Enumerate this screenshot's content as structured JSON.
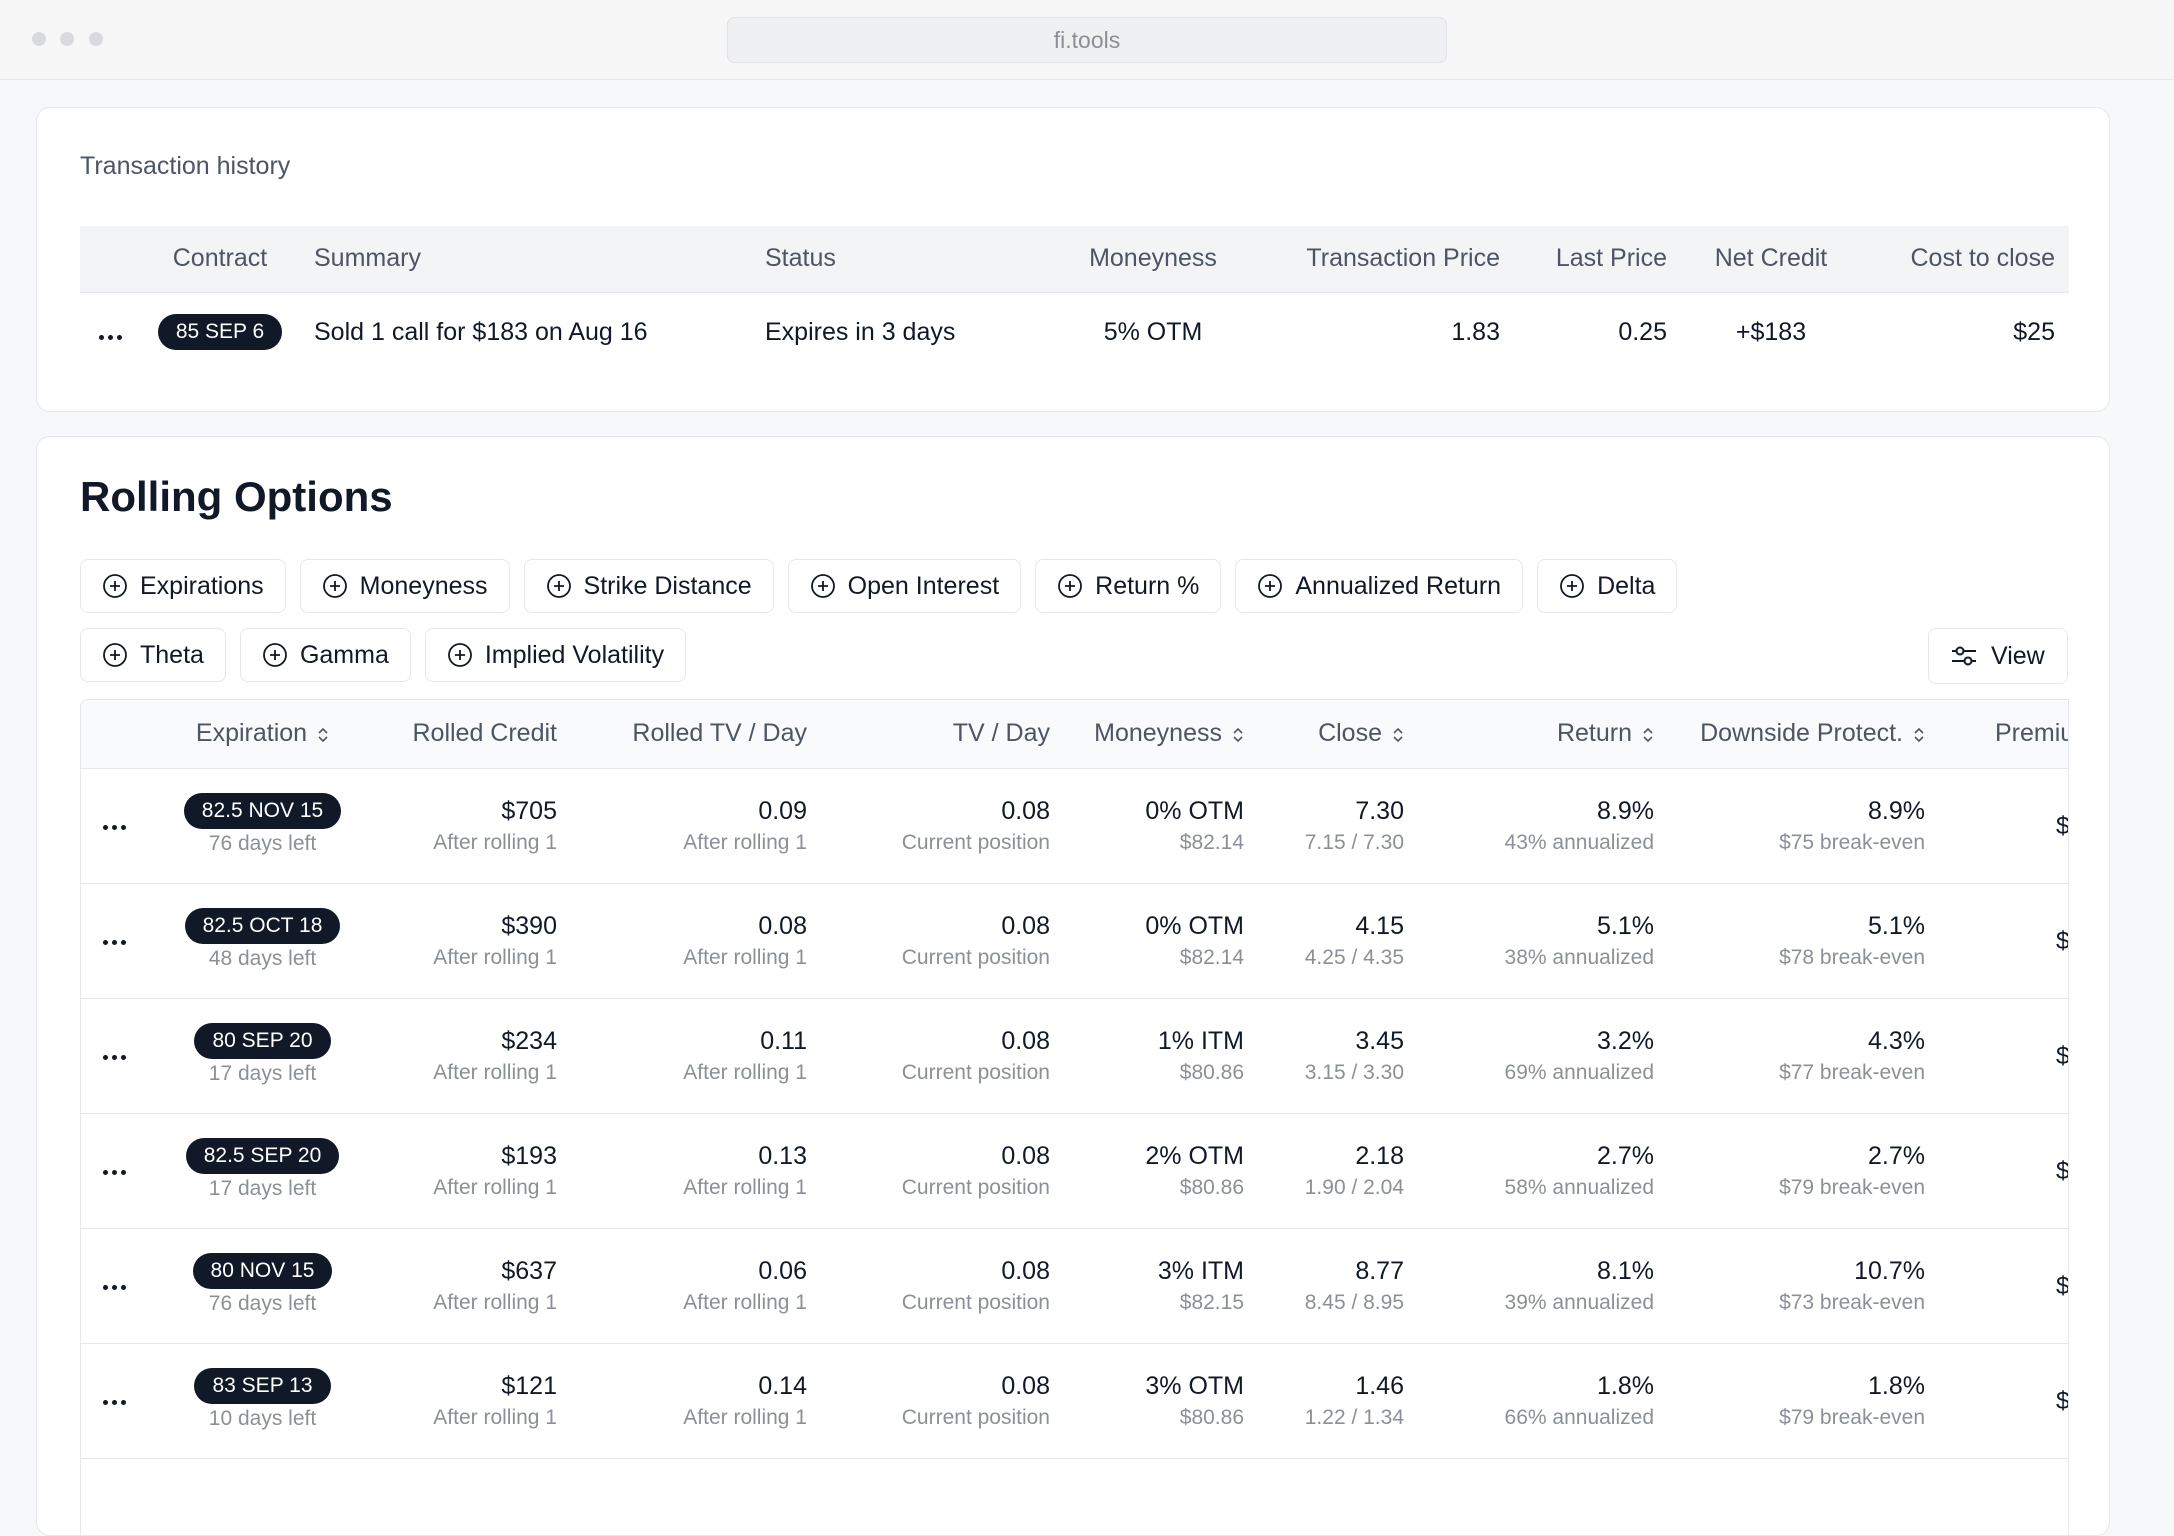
{
  "browser": {
    "url": "fi.tools"
  },
  "transaction_history": {
    "title": "Transaction history",
    "columns": [
      "Contract",
      "Summary",
      "Status",
      "Moneyness",
      "Transaction Price",
      "Last Price",
      "Net Credit",
      "Cost to close"
    ],
    "rows": [
      [
        "85 SEP 6",
        "Sold 1 call for $183 on Aug 16",
        "Expires in 3 days",
        "5% OTM",
        "1.83",
        "0.25",
        "+$183",
        "$25"
      ]
    ]
  },
  "rolling_options": {
    "title": "Rolling Options",
    "filters": [
      [
        "Expirations",
        "Moneyness",
        "Strike Distance",
        "Open Interest",
        "Return %",
        "Annualized Return",
        "Delta"
      ],
      [
        "Theta",
        "Gamma",
        "Implied Volatility"
      ]
    ],
    "view_button": "View",
    "columns": [
      {
        "label": "Expiration",
        "sortable": true
      },
      {
        "label": "Rolled Credit",
        "sortable": false
      },
      {
        "label": "Rolled TV / Day",
        "sortable": false
      },
      {
        "label": "TV / Day",
        "sortable": false
      },
      {
        "label": "Moneyness",
        "sortable": true
      },
      {
        "label": "Close",
        "sortable": true
      },
      {
        "label": "Return",
        "sortable": true
      },
      {
        "label": "Downside Protect.",
        "sortable": true
      },
      {
        "label": "Premiu",
        "sortable": false
      }
    ],
    "rows": [
      [
        {
          "value": "82.5 NOV 15",
          "sub": "76 days left"
        },
        {
          "value": "$705",
          "sub": "After rolling 1"
        },
        {
          "value": "0.09",
          "sub": "After rolling 1"
        },
        {
          "value": "0.08",
          "sub": "Current position"
        },
        {
          "value": "0% OTM",
          "sub": "$82.14"
        },
        {
          "value": "7.30",
          "sub": "7.15 / 7.30"
        },
        {
          "value": "8.9%",
          "sub": "43% annualized"
        },
        {
          "value": "8.9%",
          "sub": "$75 break-even"
        },
        {
          "value": "$"
        }
      ],
      [
        {
          "value": "82.5 OCT 18",
          "sub": "48 days left"
        },
        {
          "value": "$390",
          "sub": "After rolling 1"
        },
        {
          "value": "0.08",
          "sub": "After rolling 1"
        },
        {
          "value": "0.08",
          "sub": "Current position"
        },
        {
          "value": "0% OTM",
          "sub": "$82.14"
        },
        {
          "value": "4.15",
          "sub": "4.25 / 4.35"
        },
        {
          "value": "5.1%",
          "sub": "38% annualized"
        },
        {
          "value": "5.1%",
          "sub": "$78 break-even"
        },
        {
          "value": "$"
        }
      ],
      [
        {
          "value": "80 SEP 20",
          "sub": "17 days left"
        },
        {
          "value": "$234",
          "sub": "After rolling 1"
        },
        {
          "value": "0.11",
          "sub": "After rolling 1"
        },
        {
          "value": "0.08",
          "sub": "Current position"
        },
        {
          "value": "1% ITM",
          "sub": "$80.86"
        },
        {
          "value": "3.45",
          "sub": "3.15 / 3.30"
        },
        {
          "value": "3.2%",
          "sub": "69% annualized"
        },
        {
          "value": "4.3%",
          "sub": "$77 break-even"
        },
        {
          "value": "$"
        }
      ],
      [
        {
          "value": "82.5 SEP 20",
          "sub": "17 days left"
        },
        {
          "value": "$193",
          "sub": "After rolling 1"
        },
        {
          "value": "0.13",
          "sub": "After rolling 1"
        },
        {
          "value": "0.08",
          "sub": "Current position"
        },
        {
          "value": "2% OTM",
          "sub": "$80.86"
        },
        {
          "value": "2.18",
          "sub": "1.90 / 2.04"
        },
        {
          "value": "2.7%",
          "sub": "58% annualized"
        },
        {
          "value": "2.7%",
          "sub": "$79 break-even"
        },
        {
          "value": "$"
        }
      ],
      [
        {
          "value": "80 NOV 15",
          "sub": "76 days left"
        },
        {
          "value": "$637",
          "sub": "After rolling 1"
        },
        {
          "value": "0.06",
          "sub": "After rolling 1"
        },
        {
          "value": "0.08",
          "sub": "Current position"
        },
        {
          "value": "3% ITM",
          "sub": "$82.15"
        },
        {
          "value": "8.77",
          "sub": "8.45 / 8.95"
        },
        {
          "value": "8.1%",
          "sub": "39% annualized"
        },
        {
          "value": "10.7%",
          "sub": "$73 break-even"
        },
        {
          "value": "$"
        }
      ],
      [
        {
          "value": "83 SEP 13",
          "sub": "10 days left"
        },
        {
          "value": "$121",
          "sub": "After rolling 1"
        },
        {
          "value": "0.14",
          "sub": "After rolling 1"
        },
        {
          "value": "0.08",
          "sub": "Current position"
        },
        {
          "value": "3% OTM",
          "sub": "$80.86"
        },
        {
          "value": "1.46",
          "sub": "1.22 / 1.34"
        },
        {
          "value": "1.8%",
          "sub": "66% annualized"
        },
        {
          "value": "1.8%",
          "sub": "$79 break-even"
        },
        {
          "value": "$"
        }
      ]
    ]
  }
}
